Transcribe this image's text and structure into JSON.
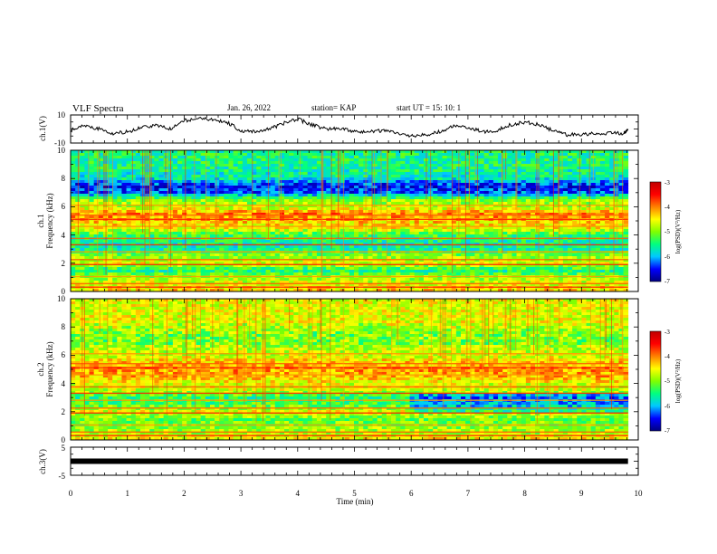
{
  "header": {
    "title": "VLF Spectra",
    "date": "Jan. 26, 2022",
    "station": "station= KAP",
    "start": "start  UT  =   15: 10: 1"
  },
  "colors": {
    "waveform": "#000000",
    "colormap": [
      "#000080",
      "#0000ff",
      "#00c8ff",
      "#00ff80",
      "#80ff00",
      "#ffff00",
      "#ff8000",
      "#ff0000",
      "#c00000"
    ]
  },
  "chart_data": [
    {
      "type": "line",
      "panel": "ch1-waveform",
      "ylabel": "ch.1(V)",
      "ylim": [
        -10,
        10
      ],
      "ytick_labels": [
        "10",
        "-10"
      ],
      "xlim": [
        0,
        10
      ],
      "series": [
        {
          "x": [
            0,
            0.25,
            0.5,
            0.75,
            1.0,
            1.25,
            1.5,
            1.75,
            2.0,
            2.25,
            2.5,
            2.75,
            3.0,
            3.25,
            3.5,
            3.75,
            4.0,
            4.25,
            4.5,
            4.75,
            5.0,
            5.25,
            5.5,
            5.75,
            6.0,
            6.25,
            6.5,
            6.75,
            7.0,
            7.25,
            7.5,
            7.75,
            8.0,
            8.25,
            8.5,
            8.75,
            9.0,
            9.25,
            9.5,
            9.75,
            9.82
          ],
          "y": [
            -1,
            3,
            0,
            -3,
            -2,
            1,
            3,
            0,
            6,
            7,
            7,
            5,
            -1,
            -2,
            0,
            4,
            7,
            3,
            0,
            0,
            -2,
            -2,
            -1,
            -3,
            -5,
            -4,
            -2,
            2,
            1,
            -2,
            -1,
            3,
            5,
            3,
            -1,
            -4,
            -4,
            -3,
            -3,
            -3,
            0
          ]
        }
      ]
    },
    {
      "type": "heatmap",
      "panel": "ch1-spectrogram",
      "ylabel_line1": "ch.1",
      "ylabel_line2": "Frequency (kHz)",
      "ylim": [
        0,
        10
      ],
      "ytick_labels": [
        "0",
        "2",
        "4",
        "6",
        "8",
        "10"
      ],
      "xlim": [
        0,
        10
      ],
      "colorbar": {
        "label": "log(PSD)(V²/Hz)",
        "range": [
          -7,
          -3
        ],
        "tick_labels": [
          "-3",
          "-4",
          "-5",
          "-6",
          "-7"
        ]
      },
      "freq_profile_kHz": [
        0,
        0.5,
        1,
        1.5,
        2,
        2.5,
        3,
        3.5,
        4,
        4.5,
        5,
        5.5,
        6,
        6.5,
        7,
        7.5,
        8,
        8.5,
        9,
        9.5,
        10
      ],
      "log_psd_profile": [
        -4.3,
        -4.6,
        -4.9,
        -5.5,
        -4.6,
        -4.9,
        -5.6,
        -5.6,
        -5.3,
        -4.5,
        -4.3,
        -4.0,
        -4.8,
        -5.0,
        -6.3,
        -6.5,
        -5.7,
        -5.6,
        -5.5,
        -5.5,
        -5.5
      ]
    },
    {
      "type": "heatmap",
      "panel": "ch2-spectrogram",
      "ylabel_line1": "ch.2",
      "ylabel_line2": "Frequency (kHz)",
      "ylim": [
        0,
        10
      ],
      "ytick_labels": [
        "0",
        "2",
        "4",
        "6",
        "8",
        "10"
      ],
      "xlim": [
        0,
        10
      ],
      "colorbar": {
        "label": "log(PSD)(V²/Hz)",
        "range": [
          -7,
          -3
        ],
        "tick_labels": [
          "-3",
          "-4",
          "-5",
          "-6",
          "-7"
        ]
      },
      "freq_profile_kHz": [
        0,
        0.5,
        1,
        1.5,
        2,
        2.5,
        3,
        3.5,
        4,
        4.5,
        5,
        5.5,
        6,
        6.5,
        7,
        7.5,
        8,
        8.5,
        9,
        9.5,
        10
      ],
      "log_psd_profile": [
        -4.4,
        -4.8,
        -5.0,
        -5.1,
        -4.6,
        -5.2,
        -5.4,
        -4.7,
        -4.6,
        -4.2,
        -4.1,
        -4.3,
        -4.7,
        -4.8,
        -4.9,
        -4.9,
        -4.6,
        -4.6,
        -4.6,
        -4.6,
        -4.6
      ]
    },
    {
      "type": "line",
      "panel": "ch3-waveform",
      "ylabel": "ch.3(V)",
      "ylim": [
        -5,
        5
      ],
      "ytick_labels": [
        "5",
        "-5"
      ],
      "xlim": [
        0,
        10
      ],
      "series": [
        {
          "x": [
            0,
            9.82
          ],
          "y": [
            0,
            0
          ]
        }
      ]
    }
  ],
  "xaxis": {
    "label": "Time  (min)",
    "tick_labels": [
      "0",
      "1",
      "2",
      "3",
      "4",
      "5",
      "6",
      "7",
      "8",
      "9",
      "10"
    ]
  }
}
